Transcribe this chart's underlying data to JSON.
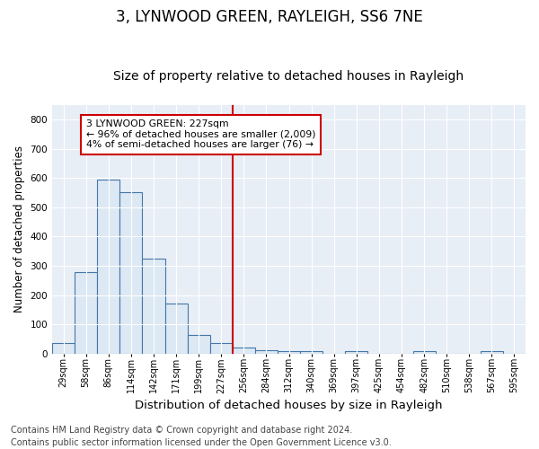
{
  "title": "3, LYNWOOD GREEN, RAYLEIGH, SS6 7NE",
  "subtitle": "Size of property relative to detached houses in Rayleigh",
  "xlabel": "Distribution of detached houses by size in Rayleigh",
  "ylabel": "Number of detached properties",
  "bin_labels": [
    "29sqm",
    "58sqm",
    "86sqm",
    "114sqm",
    "142sqm",
    "171sqm",
    "199sqm",
    "227sqm",
    "256sqm",
    "284sqm",
    "312sqm",
    "340sqm",
    "369sqm",
    "397sqm",
    "425sqm",
    "454sqm",
    "482sqm",
    "510sqm",
    "538sqm",
    "567sqm",
    "595sqm"
  ],
  "bar_heights": [
    35,
    280,
    595,
    553,
    325,
    170,
    65,
    35,
    20,
    12,
    8,
    10,
    0,
    8,
    0,
    0,
    8,
    0,
    0,
    8,
    0
  ],
  "bar_color": "#dce8f3",
  "bar_edge_color": "#4477aa",
  "highlight_index": 7,
  "highlight_color": "#cc0000",
  "annotation_text": "3 LYNWOOD GREEN: 227sqm\n← 96% of detached houses are smaller (2,009)\n4% of semi-detached houses are larger (76) →",
  "annotation_box_color": "#ffffff",
  "annotation_box_edge": "#cc0000",
  "ylim": [
    0,
    850
  ],
  "yticks": [
    0,
    100,
    200,
    300,
    400,
    500,
    600,
    700,
    800
  ],
  "background_color": "#e8eef6",
  "grid_color": "#ffffff",
  "footer": "Contains HM Land Registry data © Crown copyright and database right 2024.\nContains public sector information licensed under the Open Government Licence v3.0.",
  "title_fontsize": 12,
  "subtitle_fontsize": 10,
  "xlabel_fontsize": 9.5,
  "ylabel_fontsize": 8.5,
  "footer_fontsize": 7
}
